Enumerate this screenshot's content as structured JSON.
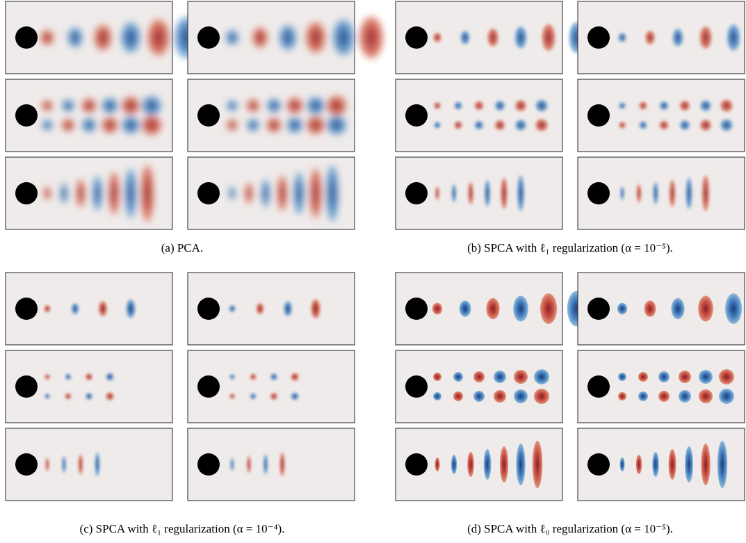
{
  "panels": [
    {
      "caption": "(a) PCA."
    },
    {
      "caption": "(b) SPCA with ℓ₁ regularization (α = 10⁻⁵)."
    },
    {
      "caption": "(c) SPCA with ℓ₁ regularization (α = 10⁻⁴)."
    },
    {
      "caption": "(d) SPCA with ℓ₀ regularization (α = 10⁻⁵)."
    }
  ]
}
